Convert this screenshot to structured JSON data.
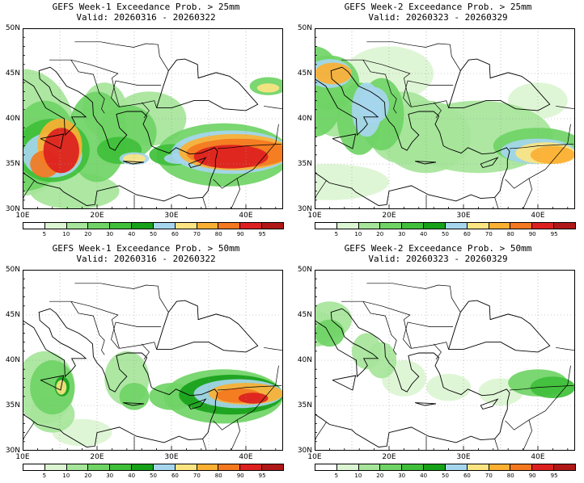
{
  "colorscale": {
    "ticks": [
      "5",
      "10",
      "20",
      "30",
      "40",
      "50",
      "60",
      "70",
      "80",
      "90",
      "95"
    ],
    "colors": [
      "#ffffff",
      "#dcf5d2",
      "#a6e59a",
      "#6fd465",
      "#3fbf3a",
      "#17a11a",
      "#a6d6ee",
      "#fce482",
      "#fbb032",
      "#f4781f",
      "#dc2020",
      "#b01818"
    ]
  },
  "axes": {
    "lat_labels": [
      "50N",
      "45N",
      "40N",
      "35N",
      "30N"
    ],
    "lon_labels": [
      "10E",
      "20E",
      "30E",
      "40E"
    ]
  },
  "palette": {
    "coast": "#000000",
    "grid": "#9a9a9a",
    "ocean": "#ffffff"
  },
  "panels": [
    {
      "title": "GEFS Week-1 Exceedance Prob. > 25mm",
      "valid": "Valid: 20260316 - 20260322"
    },
    {
      "title": "GEFS Week-2 Exceedance Prob. > 25mm",
      "valid": "Valid: 20260323 - 20260329"
    },
    {
      "title": "GEFS Week-1 Exceedance Prob. > 50mm",
      "valid": "Valid: 20260316 - 20260322"
    },
    {
      "title": "GEFS Week-2 Exceedance Prob. > 50mm",
      "valid": "Valid: 20260323 - 20260329"
    }
  ]
}
